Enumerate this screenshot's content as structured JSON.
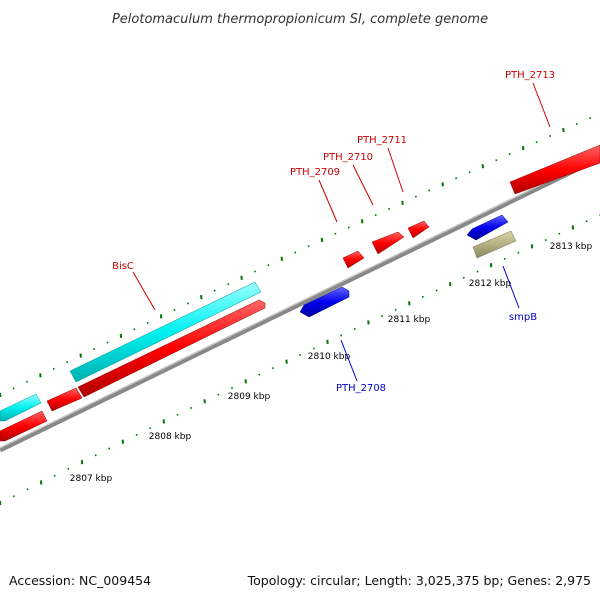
{
  "title": "Pelotomaculum thermopropionicum SI, complete genome",
  "footer": {
    "accession": "Accession: NC_009454",
    "topology": "Topology: circular; Length: 3,025,375 bp; Genes: 2,975"
  },
  "scale": {
    "labels": [
      "2807 kbp",
      "2808 kbp",
      "2809 kbp",
      "2810 kbp",
      "2811 kbp",
      "2812 kbp",
      "2813 kbp"
    ]
  },
  "genes": [
    {
      "label": "BisC",
      "strand": "forward",
      "color": "#cc0000"
    },
    {
      "label": "PTH_2709",
      "strand": "forward",
      "color": "#cc0000"
    },
    {
      "label": "PTH_2710",
      "strand": "forward",
      "color": "#cc0000"
    },
    {
      "label": "PTH_2711",
      "strand": "forward",
      "color": "#cc0000"
    },
    {
      "label": "PTH_2713",
      "strand": "forward",
      "color": "#cc0000"
    },
    {
      "label": "PTH_2708",
      "strand": "reverse",
      "color": "#0000cc"
    },
    {
      "label": "smpB",
      "strand": "reverse",
      "color": "#0000cc"
    }
  ],
  "colors": {
    "forward_cds": "#ff0000",
    "reverse_cds": "#0000ee",
    "rna": "#00ffff",
    "other": "#b5b080",
    "backbone": "#888888",
    "ticks": "#007700"
  }
}
